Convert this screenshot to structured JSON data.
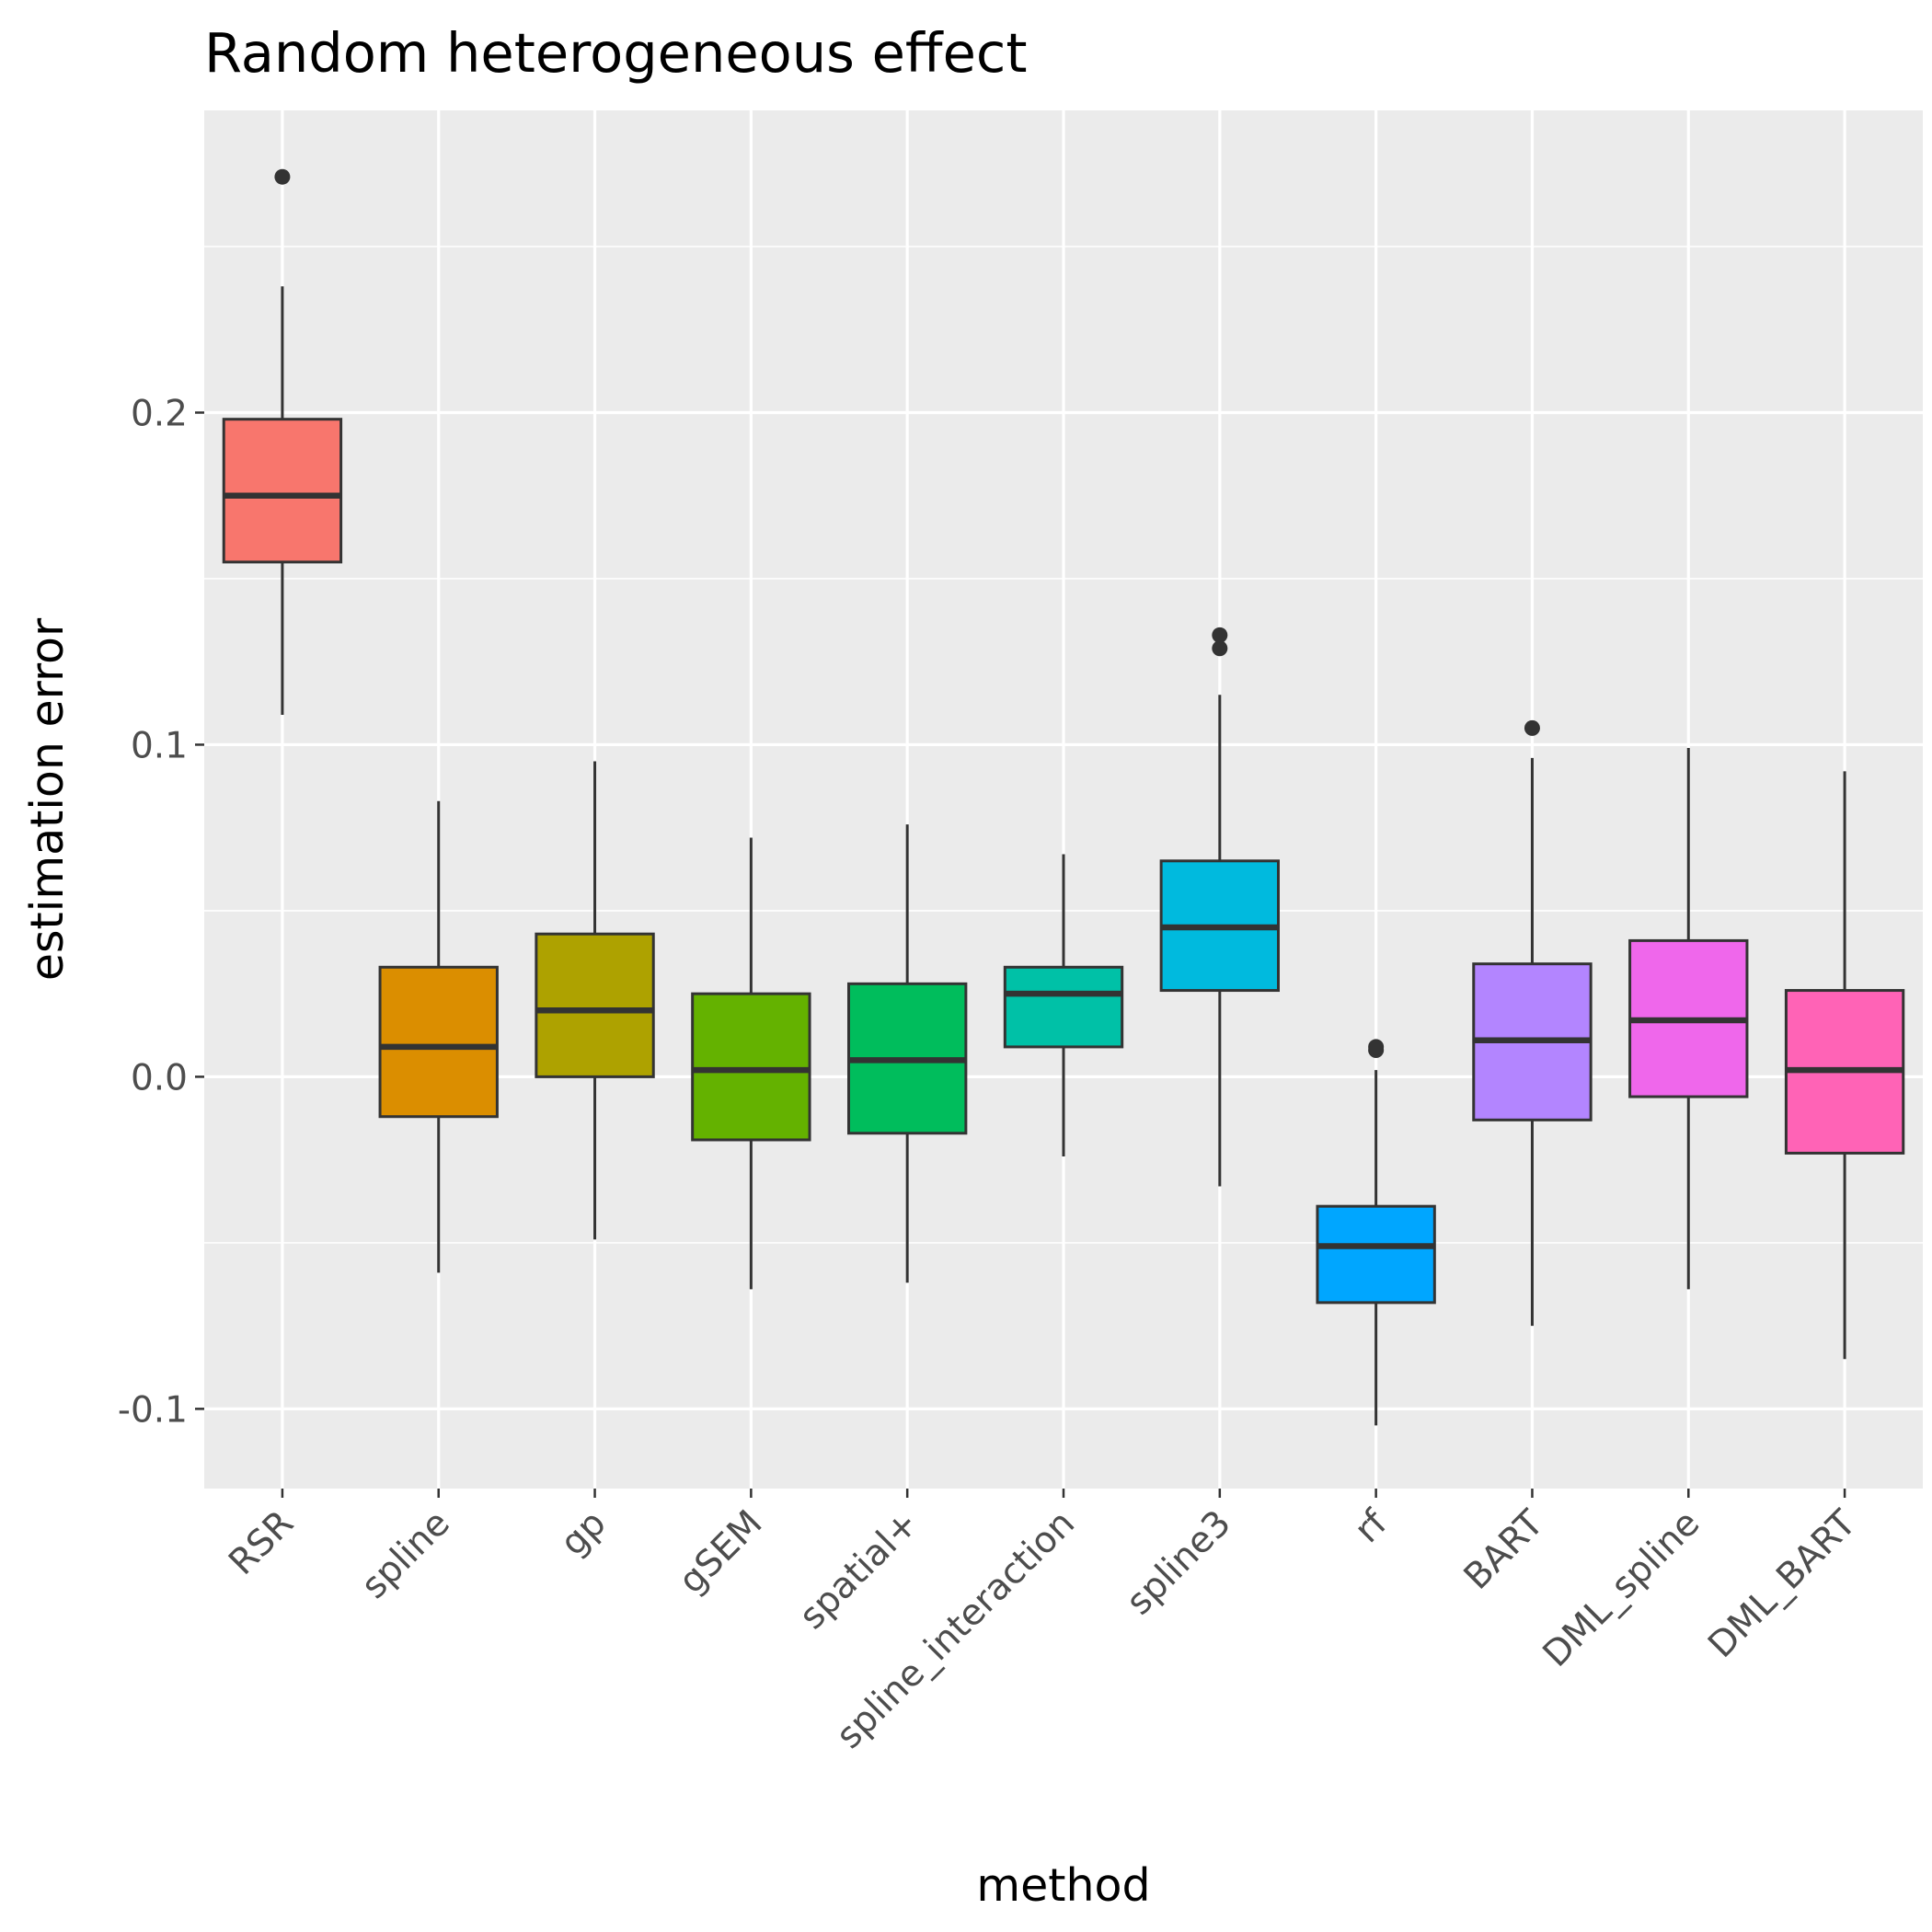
{
  "chart_data": {
    "type": "boxplot",
    "title": "Random heterogeneous effect",
    "xlabel": "method",
    "ylabel": "estimation error",
    "ylim": [
      -0.124,
      0.291
    ],
    "yticks": [
      -0.1,
      0.0,
      0.1,
      0.2
    ],
    "ytick_labels": [
      "-0.1",
      "0.0",
      "0.1",
      "0.2"
    ],
    "grid": true,
    "legend": "none",
    "categories": [
      "RSR",
      "spline",
      "gp",
      "gSEM",
      "spatial+",
      "spline_interaction",
      "spline3",
      "rf",
      "BART",
      "DML_spline",
      "DML_BART"
    ],
    "colors": [
      "#F8766D",
      "#DB8E00",
      "#AEA200",
      "#64B200",
      "#00BD5C",
      "#00C1A7",
      "#00BADE",
      "#00A6FF",
      "#B385FF",
      "#EF67EB",
      "#FF63B6"
    ],
    "boxes": [
      {
        "min": 0.109,
        "q1": 0.155,
        "median": 0.175,
        "q3": 0.198,
        "max": 0.238,
        "outliers": [
          0.271
        ]
      },
      {
        "min": -0.059,
        "q1": -0.012,
        "median": 0.009,
        "q3": 0.033,
        "max": 0.083,
        "outliers": []
      },
      {
        "min": -0.049,
        "q1": 0.0,
        "median": 0.02,
        "q3": 0.043,
        "max": 0.095,
        "outliers": []
      },
      {
        "min": -0.064,
        "q1": -0.019,
        "median": 0.002,
        "q3": 0.025,
        "max": 0.072,
        "outliers": []
      },
      {
        "min": -0.062,
        "q1": -0.017,
        "median": 0.005,
        "q3": 0.028,
        "max": 0.076,
        "outliers": []
      },
      {
        "min": -0.024,
        "q1": 0.009,
        "median": 0.025,
        "q3": 0.033,
        "max": 0.067,
        "outliers": []
      },
      {
        "min": -0.033,
        "q1": 0.026,
        "median": 0.045,
        "q3": 0.065,
        "max": 0.115,
        "outliers": [
          0.129,
          0.133
        ]
      },
      {
        "min": -0.105,
        "q1": -0.068,
        "median": -0.051,
        "q3": -0.039,
        "max": 0.002,
        "outliers": [
          0.008,
          0.009
        ]
      },
      {
        "min": -0.075,
        "q1": -0.013,
        "median": 0.011,
        "q3": 0.034,
        "max": 0.096,
        "outliers": [
          0.105
        ]
      },
      {
        "min": -0.064,
        "q1": -0.006,
        "median": 0.017,
        "q3": 0.041,
        "max": 0.099,
        "outliers": []
      },
      {
        "min": -0.085,
        "q1": -0.023,
        "median": 0.002,
        "q3": 0.026,
        "max": 0.092,
        "outliers": []
      }
    ]
  }
}
